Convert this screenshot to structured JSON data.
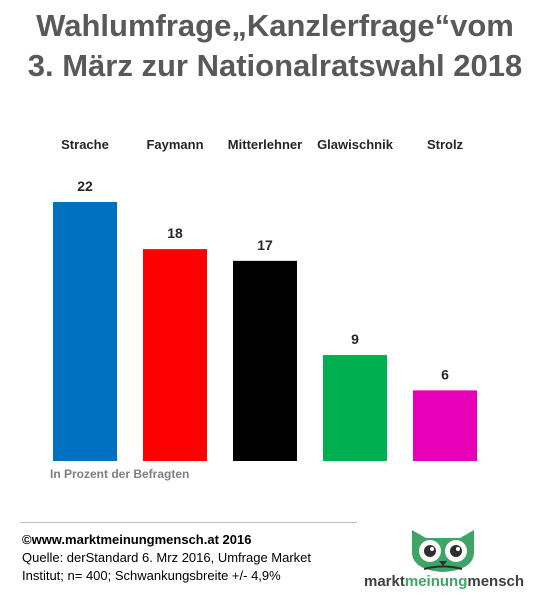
{
  "title_line1": "Wahlumfrage„Kanzlerfrage“vom",
  "title_line2": "3. März zur Nationalratswahl 2018",
  "chart_data": {
    "type": "bar",
    "categories": [
      "Strache",
      "Faymann",
      "Mitterlehner",
      "Glawischnik",
      "Strolz"
    ],
    "values": [
      22,
      18,
      17,
      9,
      6
    ],
    "colors": [
      "#0070c0",
      "#ff0000",
      "#000000",
      "#00b050",
      "#e600b8"
    ],
    "ylim": [
      0,
      22
    ],
    "grid": false,
    "legend": "none",
    "category_labels_position": "top"
  },
  "note": "In Prozent der Befragten",
  "source": {
    "copyright": "©www.marktmeinungmensch.at 2016",
    "line1": "Quelle: derStandard   6. Mrz 2016, Umfrage Market",
    "line2": "Institut; n= 400; Schwankungsbreite +/- 4,9%"
  },
  "logo": {
    "part1": "markt",
    "part2": "meinung",
    "part3": "mensch",
    "icon": "owl-icon",
    "color_accent": "#3fa566"
  }
}
